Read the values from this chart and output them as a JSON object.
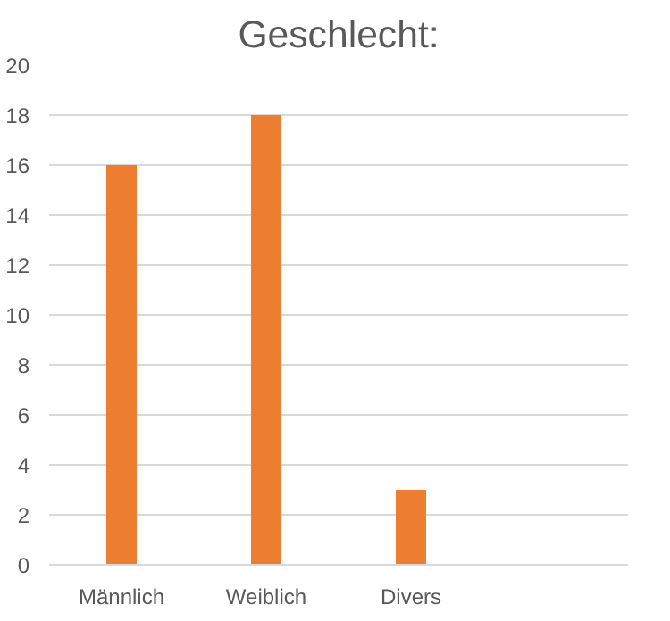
{
  "chart_data": {
    "type": "bar",
    "title": "Geschlecht:",
    "categories": [
      "Männlich",
      "Weiblich",
      "Divers",
      null
    ],
    "values": [
      16,
      18,
      3,
      null
    ],
    "color": "#ed7d31",
    "ylim": [
      0,
      20
    ],
    "yticks": [
      0,
      2,
      4,
      6,
      8,
      10,
      12,
      14,
      16,
      18,
      20
    ],
    "grid": "y"
  }
}
